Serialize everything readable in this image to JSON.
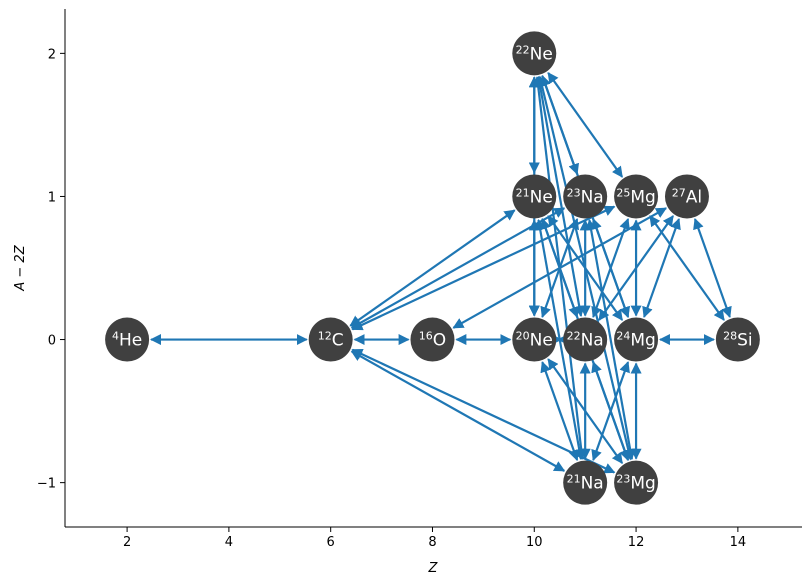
{
  "chart_data": {
    "type": "network",
    "xlabel": "Z",
    "ylabel": "A − 2Z",
    "xlim": [
      0.78,
      15.26
    ],
    "ylim": [
      -1.31,
      2.31
    ],
    "xticks": [
      2,
      4,
      6,
      8,
      10,
      12,
      14
    ],
    "yticks": [
      {
        "value": -1,
        "label": "−1"
      },
      0,
      1,
      2
    ],
    "node_color": "#404040",
    "edge_color": "#1f77b4",
    "nodes": [
      {
        "mass": "4",
        "element": "He",
        "x": 2,
        "y": 0
      },
      {
        "mass": "12",
        "element": "C",
        "x": 6,
        "y": 0
      },
      {
        "mass": "16",
        "element": "O",
        "x": 8,
        "y": 0
      },
      {
        "mass": "20",
        "element": "Ne",
        "x": 10,
        "y": 0
      },
      {
        "mass": "22",
        "element": "Na",
        "x": 11,
        "y": 0
      },
      {
        "mass": "24",
        "element": "Mg",
        "x": 12,
        "y": 0
      },
      {
        "mass": "28",
        "element": "Si",
        "x": 14,
        "y": 0
      },
      {
        "mass": "21",
        "element": "Ne",
        "x": 10,
        "y": 1
      },
      {
        "mass": "23",
        "element": "Na",
        "x": 11,
        "y": 1
      },
      {
        "mass": "25",
        "element": "Mg",
        "x": 12,
        "y": 1
      },
      {
        "mass": "27",
        "element": "Al",
        "x": 13,
        "y": 1
      },
      {
        "mass": "22",
        "element": "Ne",
        "x": 10,
        "y": 2
      },
      {
        "mass": "21",
        "element": "Na",
        "x": 11,
        "y": -1
      },
      {
        "mass": "23",
        "element": "Mg",
        "x": 12,
        "y": -1
      }
    ],
    "links": [
      [
        0,
        1
      ],
      [
        1,
        2
      ],
      [
        2,
        3
      ],
      [
        3,
        4
      ],
      [
        5,
        6
      ],
      [
        11,
        7
      ],
      [
        11,
        8
      ],
      [
        11,
        9
      ],
      [
        11,
        3
      ],
      [
        11,
        4
      ],
      [
        11,
        5
      ],
      [
        7,
        1
      ],
      [
        7,
        3
      ],
      [
        7,
        4
      ],
      [
        7,
        5
      ],
      [
        8,
        1
      ],
      [
        9,
        1
      ],
      [
        10,
        2
      ],
      [
        10,
        5
      ],
      [
        10,
        4
      ],
      [
        10,
        6
      ],
      [
        9,
        6
      ],
      [
        9,
        5
      ],
      [
        9,
        4
      ],
      [
        8,
        3
      ],
      [
        8,
        4
      ],
      [
        8,
        5
      ],
      [
        8,
        13
      ],
      [
        1,
        12
      ],
      [
        1,
        13
      ],
      [
        3,
        12
      ],
      [
        3,
        13
      ],
      [
        4,
        12
      ],
      [
        4,
        13
      ],
      [
        5,
        12
      ],
      [
        5,
        13
      ],
      [
        7,
        12
      ],
      [
        7,
        13
      ],
      [
        11,
        12
      ],
      [
        11,
        13
      ]
    ]
  }
}
